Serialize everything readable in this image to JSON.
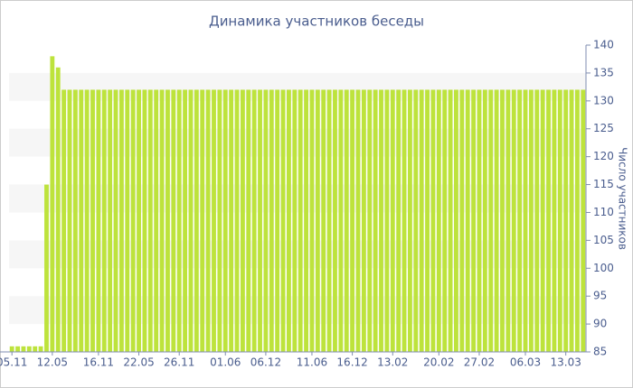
{
  "chart_data": {
    "type": "bar",
    "title": "Динамика участников беседы",
    "y_label": "Число участников",
    "categories": [
      "05.11",
      null,
      null,
      null,
      null,
      null,
      null,
      "12.05",
      null,
      null,
      null,
      null,
      null,
      null,
      null,
      "16.11",
      null,
      null,
      null,
      null,
      null,
      null,
      "22.05",
      null,
      null,
      null,
      null,
      null,
      null,
      "26.11",
      null,
      null,
      null,
      null,
      null,
      null,
      null,
      "01.06",
      null,
      null,
      null,
      null,
      null,
      null,
      "06.12",
      null,
      null,
      null,
      null,
      null,
      null,
      null,
      "11.06",
      null,
      null,
      null,
      null,
      null,
      null,
      "16.12",
      null,
      null,
      null,
      null,
      null,
      null,
      "13.02",
      null,
      null,
      null,
      null,
      null,
      null,
      null,
      "20.02",
      null,
      null,
      null,
      null,
      null,
      null,
      "27.02",
      null,
      null,
      null,
      null,
      null,
      null,
      null,
      "06.03",
      null,
      null,
      null,
      null,
      null,
      null,
      "13.03",
      null,
      null,
      null
    ],
    "values": [
      86,
      86,
      86,
      86,
      86,
      86,
      115,
      138,
      136,
      132,
      132,
      132,
      132,
      132,
      132,
      132,
      132,
      132,
      132,
      132,
      132,
      132,
      132,
      132,
      132,
      132,
      132,
      132,
      132,
      132,
      132,
      132,
      132,
      132,
      132,
      132,
      132,
      132,
      132,
      132,
      132,
      132,
      132,
      132,
      132,
      132,
      132,
      132,
      132,
      132,
      132,
      132,
      132,
      132,
      132,
      132,
      132,
      132,
      132,
      132,
      132,
      132,
      132,
      132,
      132,
      132,
      132,
      132,
      132,
      132,
      132,
      132,
      132,
      132,
      132,
      132,
      132,
      132,
      132,
      132,
      132,
      132,
      132,
      132,
      132,
      132,
      132,
      132,
      132,
      132,
      132,
      132,
      132,
      132,
      132,
      132,
      132,
      132,
      132,
      132
    ],
    "color": "#bde33c",
    "ylim": [
      85,
      140
    ],
    "yticks": [
      85,
      90,
      95,
      100,
      105,
      110,
      115,
      120,
      125,
      130,
      135,
      140
    ],
    "y_axis_side": "right",
    "grid": true
  }
}
